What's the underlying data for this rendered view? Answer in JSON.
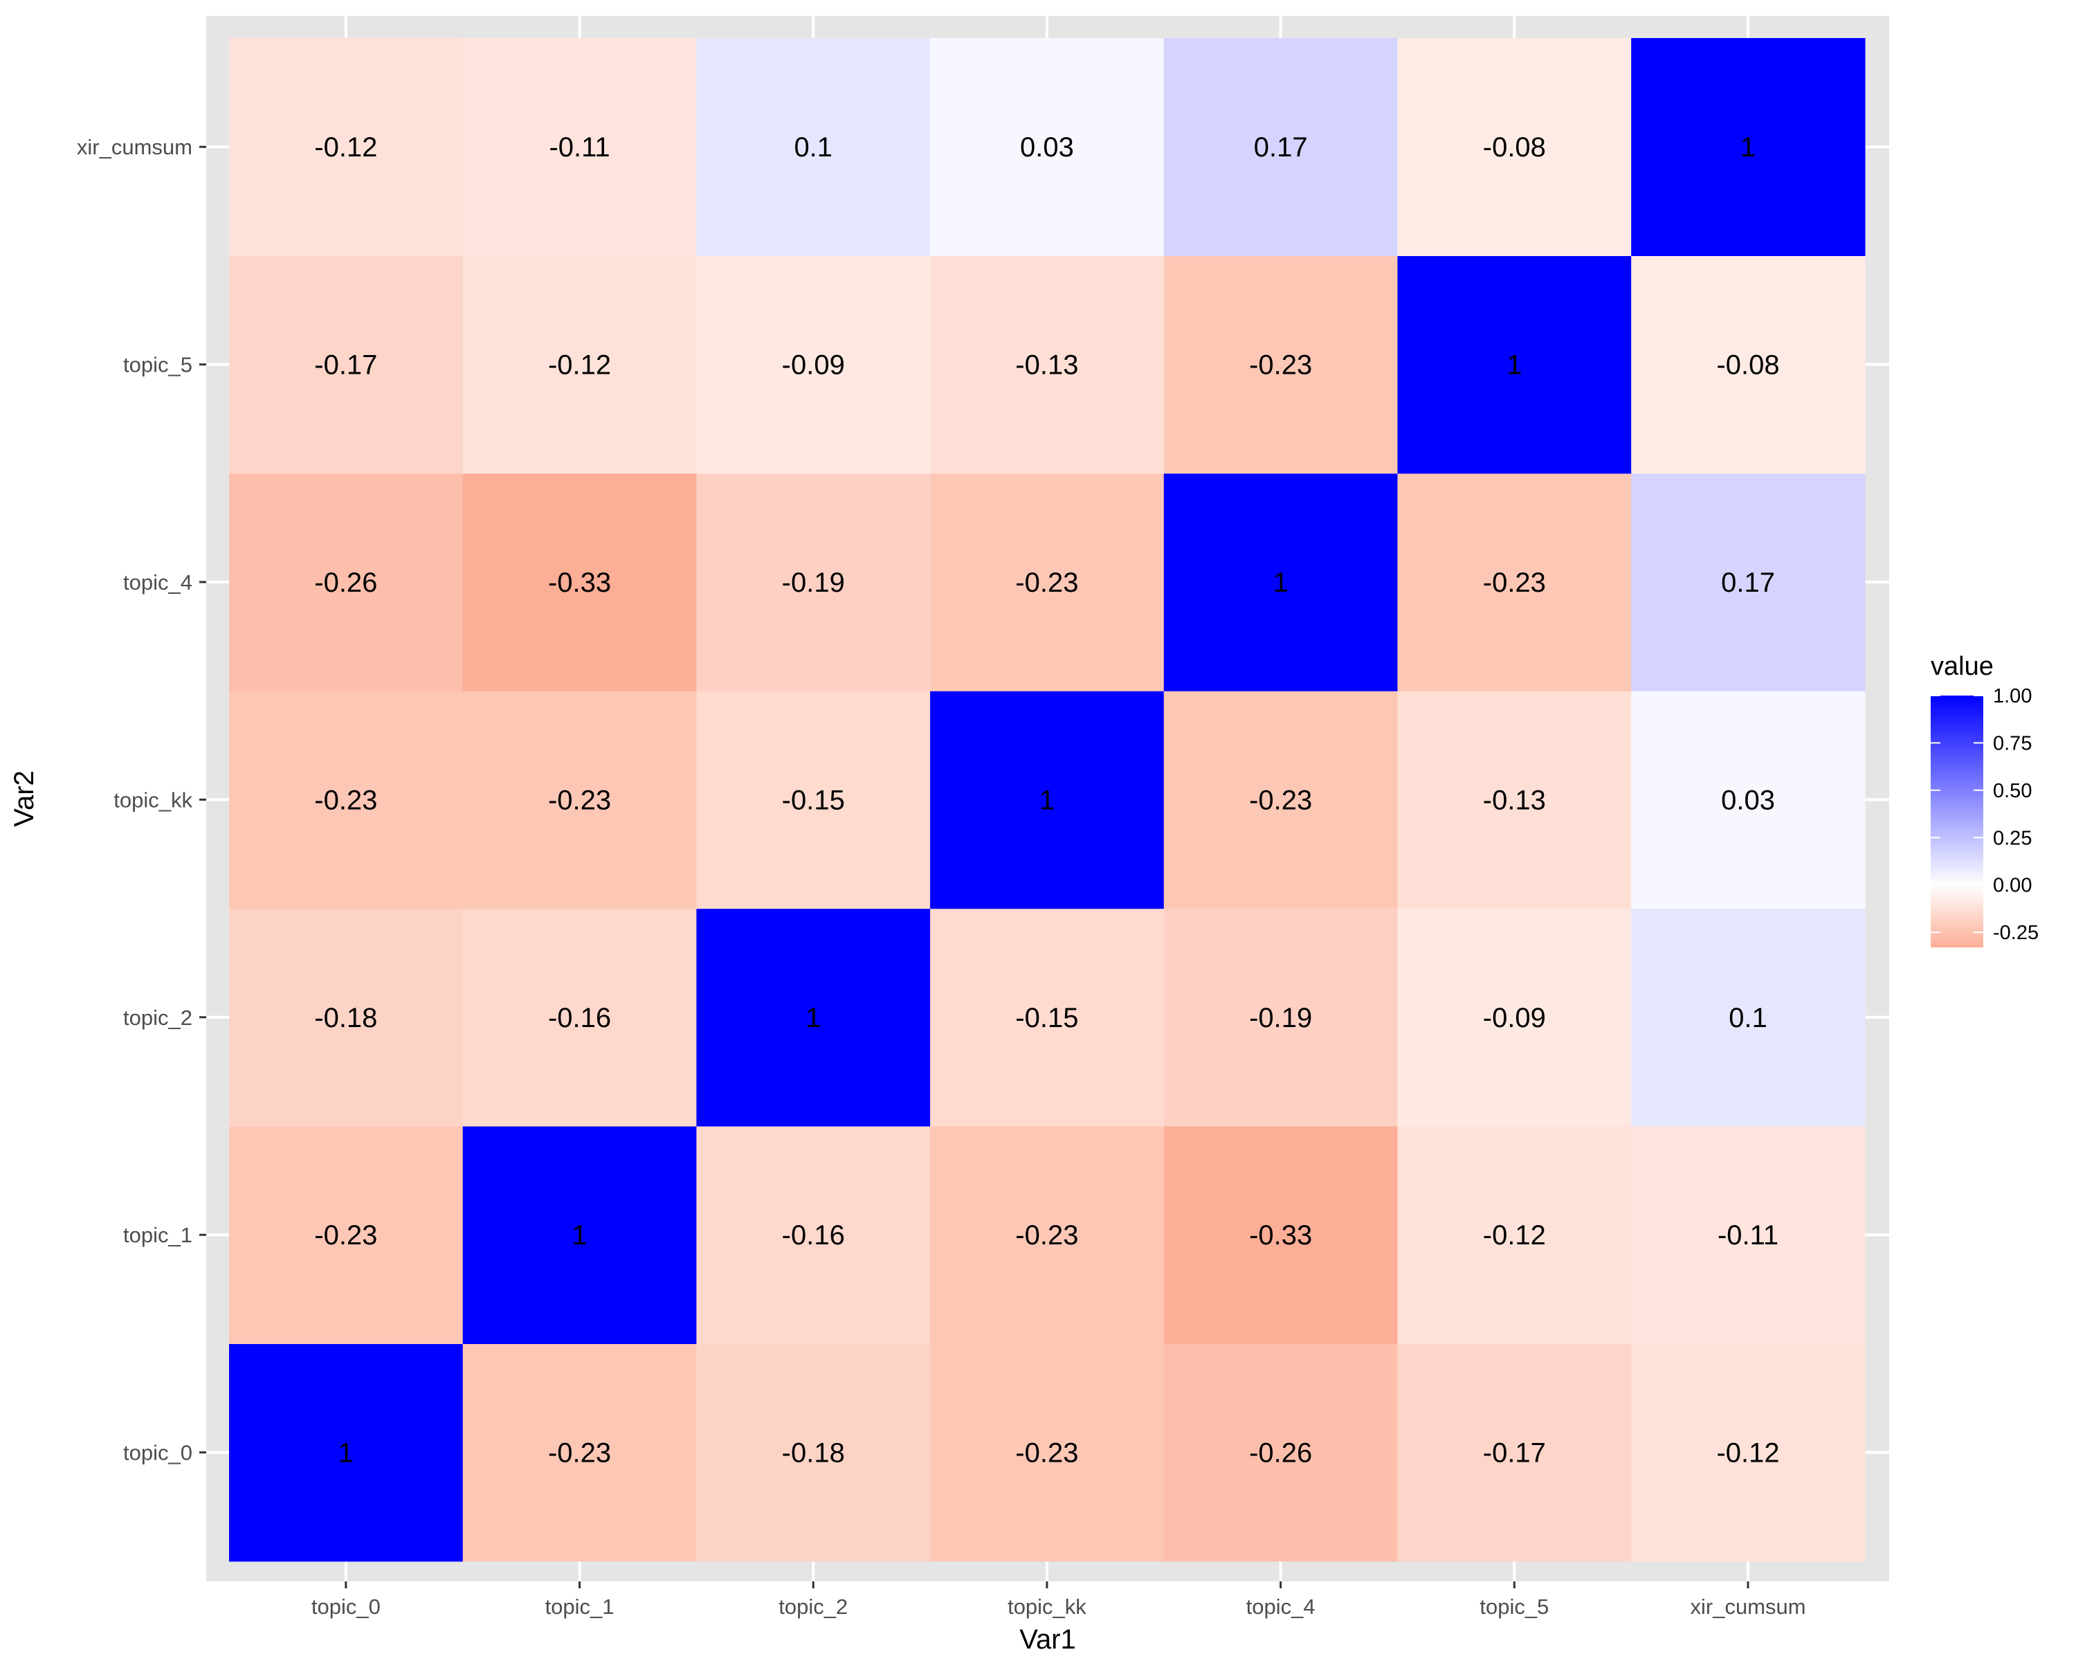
{
  "chart_data": {
    "type": "heatmap",
    "xlabel": "Var1",
    "ylabel": "Var2",
    "x_categories": [
      "topic_0",
      "topic_1",
      "topic_2",
      "topic_kk",
      "topic_4",
      "topic_5",
      "xir_cumsum"
    ],
    "y_categories": [
      "topic_0",
      "topic_1",
      "topic_2",
      "topic_kk",
      "topic_4",
      "topic_5",
      "xir_cumsum"
    ],
    "matrix": [
      [
        1,
        -0.23,
        -0.18,
        -0.23,
        -0.26,
        -0.17,
        -0.12
      ],
      [
        -0.23,
        1,
        -0.16,
        -0.23,
        -0.33,
        -0.12,
        -0.11
      ],
      [
        -0.18,
        -0.16,
        1,
        -0.15,
        -0.19,
        -0.09,
        0.1
      ],
      [
        -0.23,
        -0.23,
        -0.15,
        1,
        -0.23,
        -0.13,
        0.03
      ],
      [
        -0.26,
        -0.33,
        -0.19,
        -0.23,
        1,
        -0.23,
        0.17
      ],
      [
        -0.17,
        -0.12,
        -0.09,
        -0.13,
        -0.23,
        1,
        -0.08
      ],
      [
        -0.12,
        -0.11,
        0.1,
        0.03,
        0.17,
        -0.08,
        1
      ]
    ],
    "legend": {
      "title": "value",
      "breaks": [
        "1.00",
        "0.75",
        "0.50",
        "0.25",
        "0.00",
        "-0.25"
      ],
      "break_values": [
        1,
        0.75,
        0.5,
        0.25,
        0,
        -0.25
      ],
      "range": [
        -0.33,
        1
      ],
      "low_color": "#FCAE96",
      "mid_color": "#FFFFFF",
      "high_color": "#0000FF",
      "position": "right"
    },
    "panel_background": "#E5E5E5",
    "grid": true
  }
}
